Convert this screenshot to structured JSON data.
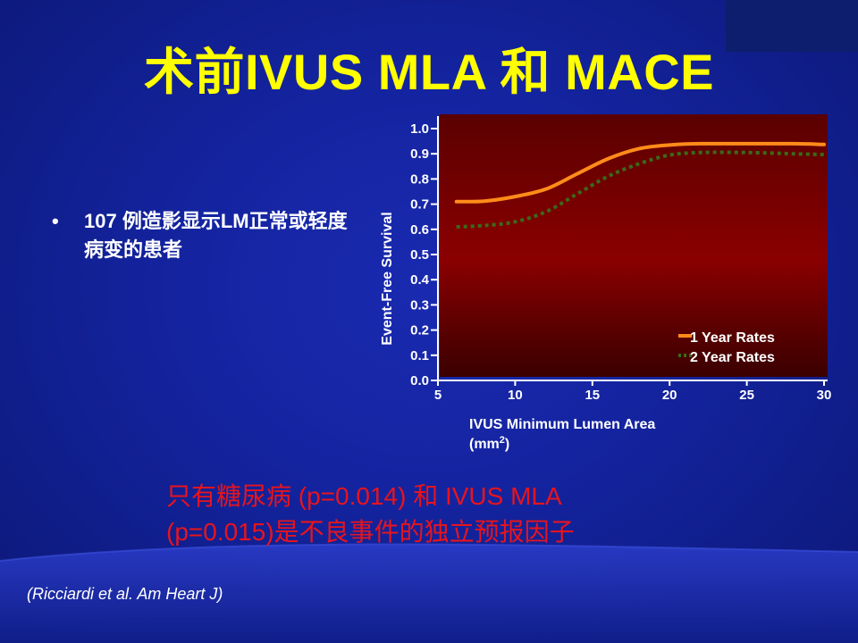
{
  "slide": {
    "title": "术前IVUS MLA 和 MACE",
    "bullet_marker": "•",
    "bullet_text": "107 例造影显示LM正常或轻度病变的患者",
    "conclusion_line1": "只有糖尿病 (p=0.014) 和 IVUS MLA",
    "conclusion_line2": "(p=0.015)是不良事件的独立预报因子",
    "citation": "(Ricciardi et al. Am Heart J)"
  },
  "colors": {
    "title": "#ffff00",
    "conclusion": "#e8141c",
    "series_1": "#ff8c1a",
    "series_2": "#3a6a18",
    "plot_bg_top": "#5a0000",
    "plot_bg_mid": "#8a0000",
    "plot_bg_bottom": "#3a0000"
  },
  "chart_data": {
    "type": "line",
    "xlabel_line1": "IVUS Minimum Lumen Area",
    "xlabel_line2_pre": "(mm",
    "xlabel_sup": "2",
    "xlabel_line2_post": ")",
    "ylabel": "Event-Free Survival",
    "xlim": [
      5,
      30
    ],
    "ylim": [
      0,
      1.0
    ],
    "x_ticks": [
      "5",
      "10",
      "15",
      "20",
      "25",
      "30"
    ],
    "y_ticks": [
      "0.0",
      "0.1",
      "0.2",
      "0.3",
      "0.4",
      "0.5",
      "0.6",
      "0.7",
      "0.8",
      "0.9",
      "1.0"
    ],
    "legend_position": "bottom-right",
    "series": [
      {
        "name": "1 Year Rates",
        "style": "solid",
        "x": [
          6.2,
          8,
          10,
          12,
          14,
          16,
          18,
          20,
          22,
          25,
          28,
          30
        ],
        "y": [
          0.71,
          0.712,
          0.73,
          0.76,
          0.82,
          0.88,
          0.92,
          0.935,
          0.94,
          0.94,
          0.94,
          0.937
        ]
      },
      {
        "name": "2 Year Rates",
        "style": "dotted",
        "x": [
          6.2,
          8,
          10,
          12,
          14,
          16,
          18,
          20,
          22,
          25,
          28,
          30
        ],
        "y": [
          0.61,
          0.615,
          0.63,
          0.67,
          0.74,
          0.81,
          0.86,
          0.895,
          0.905,
          0.905,
          0.9,
          0.897
        ]
      }
    ]
  }
}
